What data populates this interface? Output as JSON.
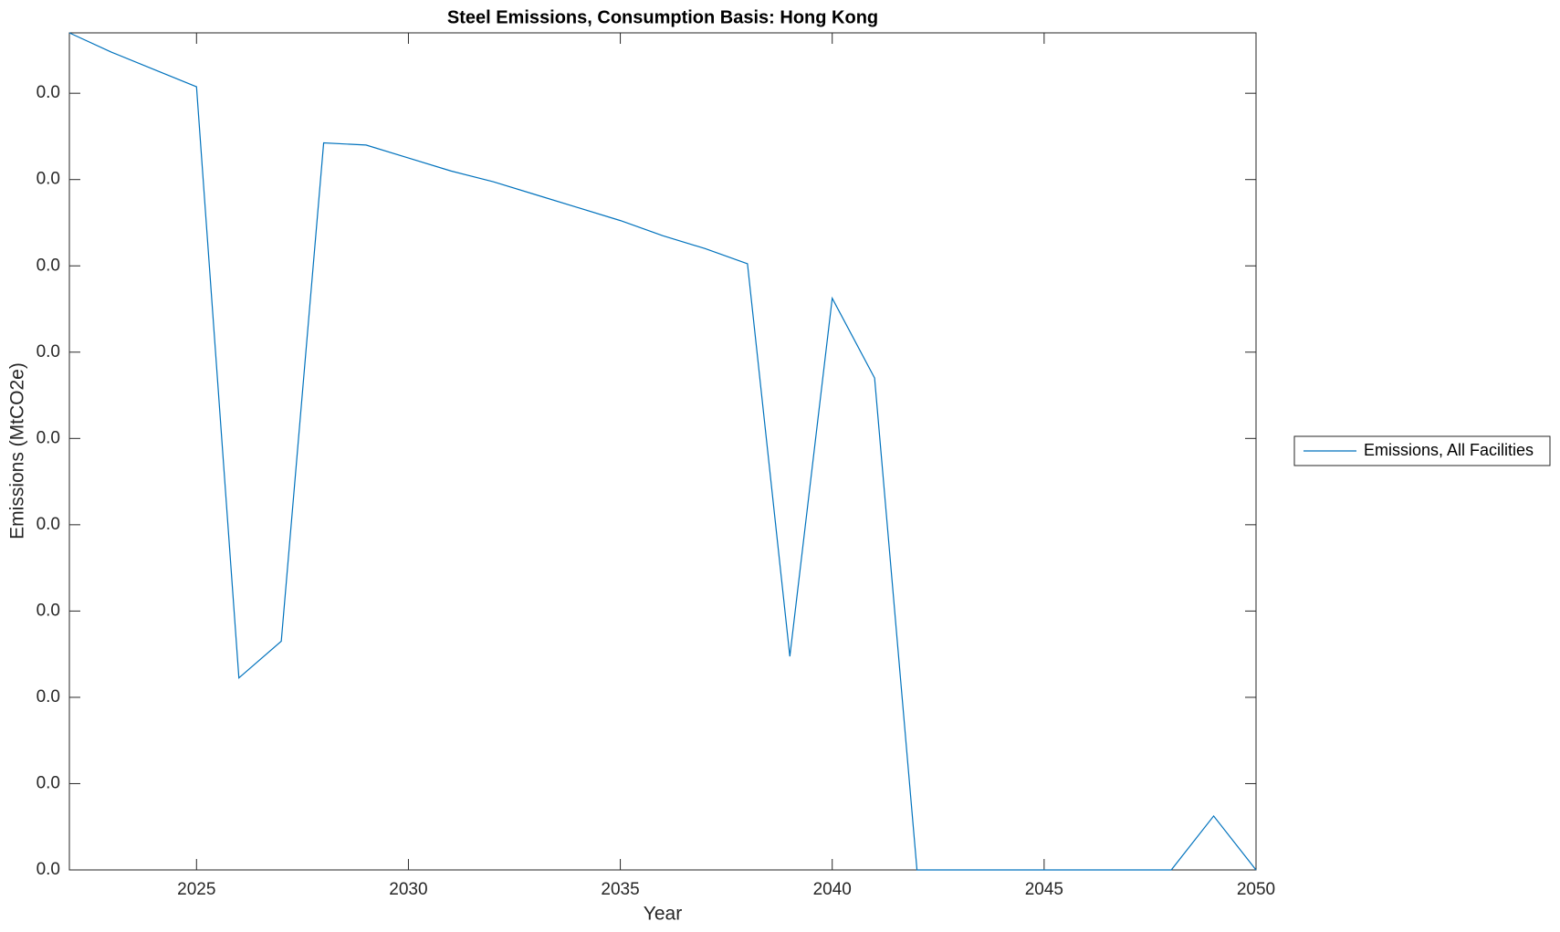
{
  "chart_data": {
    "type": "line",
    "title": "Steel Emissions, Consumption Basis: Hong Kong",
    "x_label": "Year",
    "y_label": "Emissions (MtCO2e)",
    "x": [
      2022,
      2023,
      2024,
      2025,
      2026,
      2027,
      2028,
      2029,
      2030,
      2031,
      2032,
      2033,
      2034,
      2035,
      2036,
      2037,
      2038,
      2039,
      2040,
      2041,
      2042,
      2043,
      2044,
      2045,
      2046,
      2047,
      2048,
      2049,
      2050
    ],
    "series": [
      {
        "name": "Emissions, All Facilities",
        "color": "#0072bd",
        "values": [
          0.0388,
          0.0379,
          0.0371,
          0.0363,
          0.0089,
          0.0106,
          0.0337,
          0.0336,
          0.033,
          0.0324,
          0.0319,
          0.0313,
          0.0307,
          0.0301,
          0.0294,
          0.0288,
          0.0281,
          0.0099,
          0.0265,
          0.0228,
          0,
          0,
          0,
          0,
          0,
          0,
          0,
          0.0025,
          0
        ]
      }
    ],
    "xlim": [
      2022,
      2050
    ],
    "xticks": [
      2025,
      2030,
      2035,
      2040,
      2045,
      2050
    ],
    "ylim": [
      0,
      0.0388
    ],
    "yticks": [
      {
        "value": 0,
        "label": "0.0"
      },
      {
        "value": 0.004,
        "label": "0.0"
      },
      {
        "value": 0.008,
        "label": "0.0"
      },
      {
        "value": 0.012,
        "label": "0.0"
      },
      {
        "value": 0.016,
        "label": "0.0"
      },
      {
        "value": 0.02,
        "label": "0.0"
      },
      {
        "value": 0.024,
        "label": "0.0"
      },
      {
        "value": 0.028,
        "label": "0.0"
      },
      {
        "value": 0.032,
        "label": "0.0"
      },
      {
        "value": 0.036,
        "label": "0.0"
      }
    ],
    "grid": false,
    "legend": "right"
  }
}
